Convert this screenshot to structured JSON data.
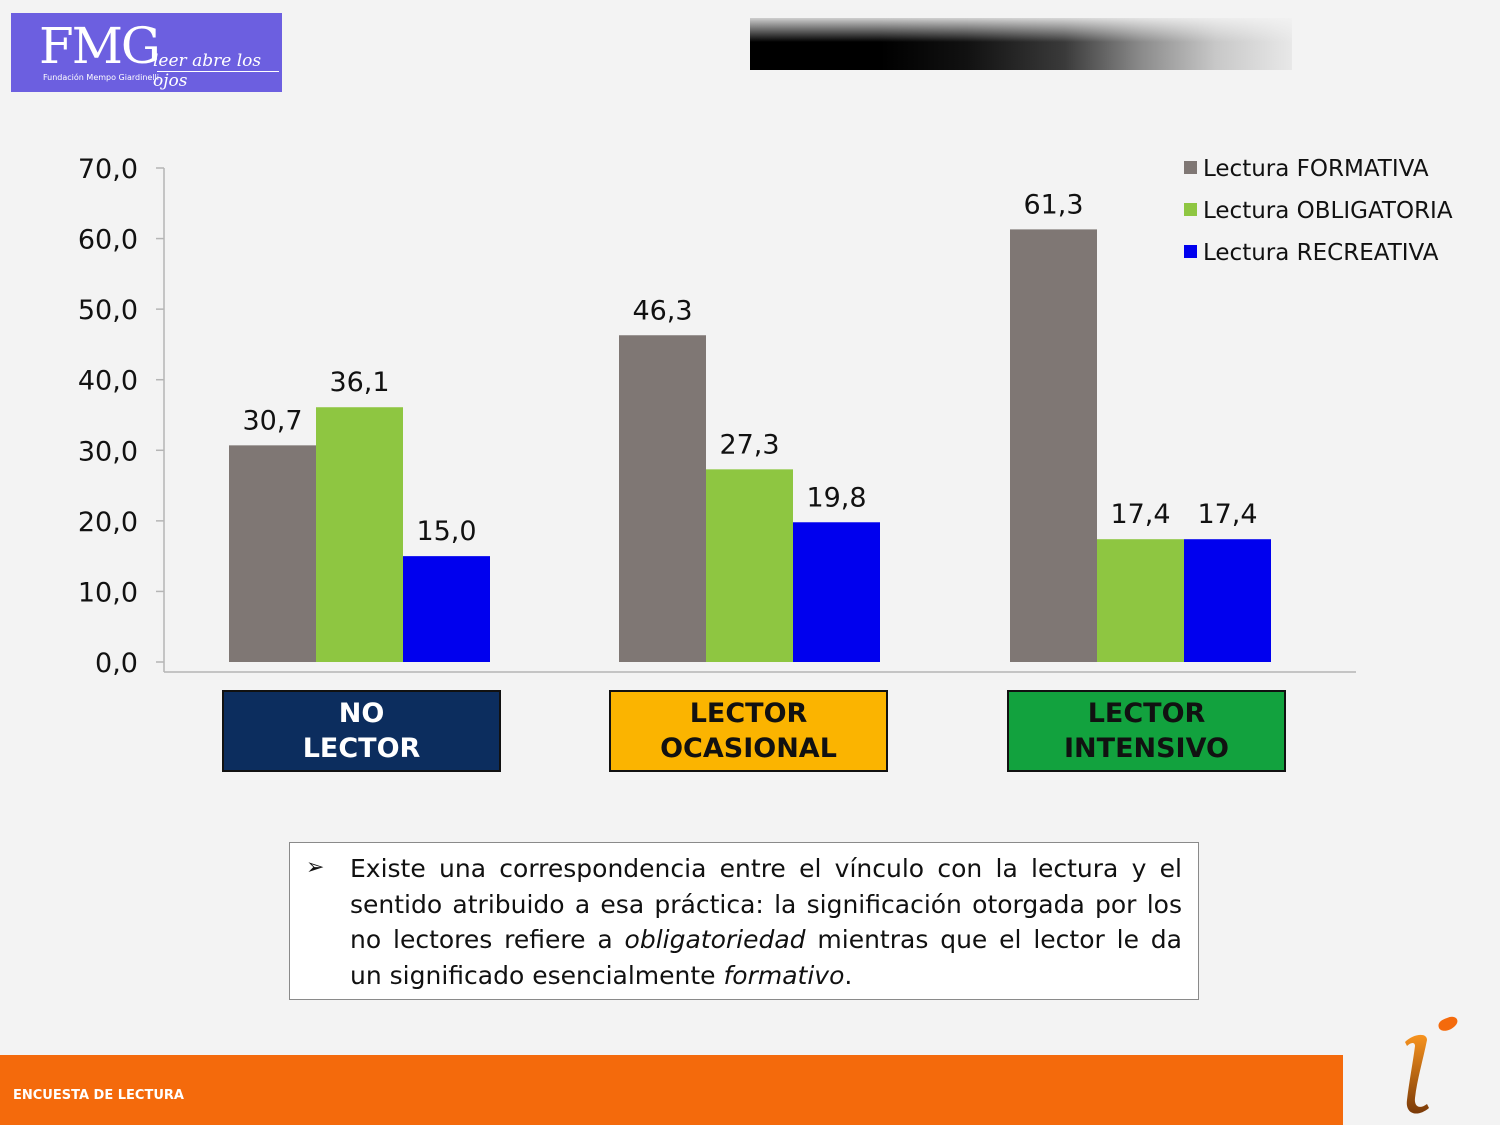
{
  "logo": {
    "main": "FMG",
    "sub": "Fundación Mempo Giardinelli",
    "script": "leer abre los ojos"
  },
  "chart_data": {
    "type": "bar",
    "categories": [
      "NO\nLECTOR",
      "LECTOR\nOCASIONAL",
      "LECTOR\nINTENSIVO"
    ],
    "series": [
      {
        "name": "Lectura FORMATIVA",
        "color": "#7f7774",
        "values": [
          30.7,
          46.3,
          61.3
        ],
        "labels": [
          "30,7",
          "46,3",
          "61,3"
        ]
      },
      {
        "name": "Lectura OBLIGATORIA",
        "color": "#8ec641",
        "values": [
          36.1,
          27.3,
          17.4
        ],
        "labels": [
          "36,1",
          "27,3",
          "17,4"
        ]
      },
      {
        "name": "Lectura RECREATIVA",
        "color": "#0000ee",
        "values": [
          15.0,
          19.8,
          17.4
        ],
        "labels": [
          "15,0",
          "19,8",
          "17,4"
        ]
      }
    ],
    "ylim": [
      0,
      70
    ],
    "yticks": [
      "0,0",
      "10,0",
      "20,0",
      "30,0",
      "40,0",
      "50,0",
      "60,0",
      "70,0"
    ],
    "category_colors": [
      "#0c2d5e",
      "#fbb400",
      "#12a23e"
    ],
    "category_text_colors": [
      "#ffffff",
      "#111111",
      "#111111"
    ],
    "legend_position": "top-right",
    "grid": false
  },
  "note": {
    "bullet": "➢",
    "text_1": "Existe una correspondencia entre el vínculo con la lectura y el sentido atribuido a esa práctica: la significación otorgada por los no lectores refiere a ",
    "emph_1": "obligatoriedad",
    "text_2": " mientras que el lector le da un significado esencialmente ",
    "emph_2": "formativo",
    "text_3": "."
  },
  "footer": {
    "label": "ENCUESTA  DE LECTURA"
  }
}
